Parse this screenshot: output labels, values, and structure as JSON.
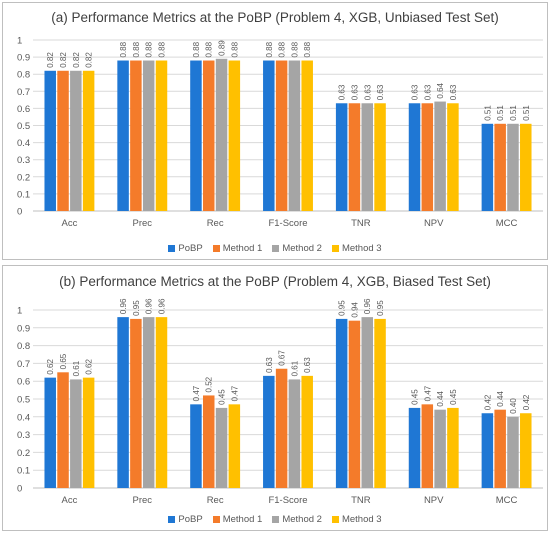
{
  "colors": {
    "PoBP": "#1f77d4",
    "Method 1": "#f47b2a",
    "Method 2": "#a5a5a5",
    "Method 3": "#ffc000",
    "grid": "#d9d9d9",
    "axis": "#bfbfbf"
  },
  "chart_data": [
    {
      "type": "bar",
      "title": "(a) Performance Metrics at the PoBP (Problem 4, XGB, Unbiased Test Set)",
      "xlabel": "",
      "ylabel": "",
      "ylim": [
        0,
        1
      ],
      "yticks": [
        "0",
        "0.1",
        "0.2",
        "0.3",
        "0.4",
        "0.5",
        "0.6",
        "0.7",
        "0.8",
        "0.9",
        "1"
      ],
      "grid": true,
      "legend_position": "bottom",
      "categories": [
        "Acc",
        "Prec",
        "Rec",
        "F1-Score",
        "TNR",
        "NPV",
        "MCC"
      ],
      "series": [
        {
          "name": "PoBP",
          "values": [
            0.82,
            0.88,
            0.88,
            0.88,
            0.63,
            0.63,
            0.51
          ]
        },
        {
          "name": "Method 1",
          "values": [
            0.82,
            0.88,
            0.88,
            0.88,
            0.63,
            0.63,
            0.51
          ]
        },
        {
          "name": "Method 2",
          "values": [
            0.82,
            0.88,
            0.89,
            0.88,
            0.63,
            0.64,
            0.51
          ]
        },
        {
          "name": "Method 3",
          "values": [
            0.82,
            0.88,
            0.88,
            0.88,
            0.63,
            0.63,
            0.51
          ]
        }
      ],
      "labels": [
        [
          "0.82",
          "0.88",
          "0.88",
          "0.88",
          "0.63",
          "0.63",
          "0.51"
        ],
        [
          "0.82",
          "0.88",
          "0.88",
          "0.88",
          "0.63",
          "0.63",
          "0.51"
        ],
        [
          "0.82",
          "0.88",
          "0.89",
          "0.88",
          "0.63",
          "0.64",
          "0.51"
        ],
        [
          "0.82",
          "0.88",
          "0.88",
          "0.88",
          "0.63",
          "0.63",
          "0.51"
        ]
      ]
    },
    {
      "type": "bar",
      "title": "(b) Performance Metrics at the PoBP (Problem 4, XGB, Biased Test Set)",
      "xlabel": "",
      "ylabel": "",
      "ylim": [
        0,
        1
      ],
      "yticks": [
        "0",
        "0.1",
        "0.2",
        "0.3",
        "0.4",
        "0.5",
        "0.6",
        "0.7",
        "0.8",
        "0.9",
        "1"
      ],
      "grid": true,
      "legend_position": "bottom",
      "categories": [
        "Acc",
        "Prec",
        "Rec",
        "F1-Score",
        "TNR",
        "NPV",
        "MCC"
      ],
      "series": [
        {
          "name": "PoBP",
          "values": [
            0.62,
            0.96,
            0.47,
            0.63,
            0.95,
            0.45,
            0.42
          ]
        },
        {
          "name": "Method 1",
          "values": [
            0.65,
            0.95,
            0.52,
            0.67,
            0.94,
            0.47,
            0.44
          ]
        },
        {
          "name": "Method 2",
          "values": [
            0.61,
            0.96,
            0.45,
            0.61,
            0.96,
            0.44,
            0.4
          ]
        },
        {
          "name": "Method 3",
          "values": [
            0.62,
            0.96,
            0.47,
            0.63,
            0.95,
            0.45,
            0.42
          ]
        }
      ],
      "labels": [
        [
          "0.62",
          "0.96",
          "0.47",
          "0.63",
          "0.95",
          "0.45",
          "0.42"
        ],
        [
          "0.65",
          "0.95",
          "0.52",
          "0.67",
          "0.94",
          "0.47",
          "0.44"
        ],
        [
          "0.61",
          "0.96",
          "0.45",
          "0.61",
          "0.96",
          "0.44",
          "0.40"
        ],
        [
          "0.62",
          "0.96",
          "0.47",
          "0.63",
          "0.95",
          "0.45",
          "0.42"
        ]
      ]
    }
  ]
}
